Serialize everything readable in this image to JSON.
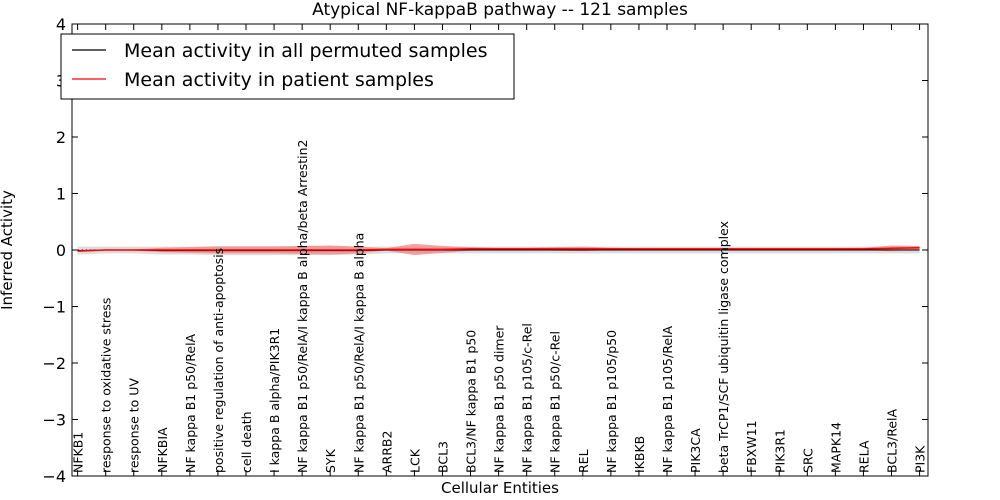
{
  "chart_data": {
    "type": "line",
    "title": "Atypical NF-kappaB pathway -- 121 samples",
    "xlabel": "Cellular Entities",
    "ylabel": "Inferred Activity",
    "ylim": [
      -4,
      4
    ],
    "xlim": [
      -0.2,
      30.3
    ],
    "yticks": [
      "−4",
      "−3",
      "−2",
      "−1",
      "0",
      "1",
      "2",
      "3",
      "4"
    ],
    "ytick_values": [
      -4,
      -3,
      -2,
      -1,
      0,
      1,
      2,
      3,
      4
    ],
    "grid": false,
    "legend_position": "top-left",
    "categories": [
      "NFKB1",
      "response to oxidative stress",
      "response to UV",
      "NFKBIA",
      "NF kappa B1 p50/RelA",
      "positive regulation of anti-apoptosis",
      "cell death",
      "I kappa B alpha/PIK3R1",
      "NF kappa B1 p50/RelA/I kappa B alpha/beta Arrestin2",
      "SYK",
      "NF kappa B1 p50/RelA/I kappa B alpha",
      "ARRB2",
      "LCK",
      "BCL3",
      "BCL3/NF kappa B1 p50",
      "NF kappa B1 p50 dimer",
      "NF kappa B1 p105/c-Rel",
      "NF kappa B1 p50/c-Rel",
      "REL",
      "NF kappa B1 p105/p50",
      "IKBKB",
      "NF kappa B1 p105/RelA",
      "PIK3CA",
      "beta TrCP1/SCF ubiquitin ligase complex",
      "FBXW11",
      "PIK3R1",
      "SRC",
      "MAPK14",
      "RELA",
      "BCL3/RelA",
      "PI3K"
    ],
    "series": [
      {
        "name": "Mean activity in all permuted samples",
        "color": "#000000",
        "values": [
          -0.01,
          0,
          0,
          -0.01,
          -0.01,
          -0.01,
          -0.01,
          -0.01,
          -0.01,
          -0.01,
          -0.01,
          0,
          0,
          0,
          0,
          0,
          0,
          0,
          0,
          0,
          0,
          0,
          0,
          0,
          0,
          0,
          0,
          0,
          0,
          0,
          0
        ],
        "band": [
          0.07,
          0.06,
          0.06,
          0.07,
          0.07,
          0.08,
          0.08,
          0.08,
          0.08,
          0.08,
          0.07,
          0.06,
          0.06,
          0.06,
          0.06,
          0.06,
          0.06,
          0.06,
          0.06,
          0.06,
          0.06,
          0.06,
          0.06,
          0.06,
          0.06,
          0.06,
          0.06,
          0.06,
          0.06,
          0.06,
          0.06
        ],
        "band_color": "#bbbbbb"
      },
      {
        "name": "Mean activity in patient samples",
        "color": "#ff0000",
        "values": [
          -0.02,
          0,
          0,
          0,
          0,
          0,
          0,
          0,
          0,
          0,
          0,
          0.01,
          0.01,
          0.01,
          0.02,
          0.02,
          0.02,
          0.02,
          0.02,
          0.02,
          0.02,
          0.02,
          0.02,
          0.02,
          0.02,
          0.02,
          0.02,
          0.02,
          0.02,
          0.03,
          0.04
        ],
        "band": [
          0.01,
          0.01,
          0.01,
          0.04,
          0.05,
          0.06,
          0.06,
          0.06,
          0.07,
          0.08,
          0.06,
          0.02,
          0.1,
          0.06,
          0.03,
          0.02,
          0.02,
          0.03,
          0.04,
          0.02,
          0.01,
          0.01,
          0.01,
          0.01,
          0.01,
          0.01,
          0.01,
          0.01,
          0.02,
          0.05,
          0.03
        ],
        "band_color": "#f08080"
      }
    ],
    "zero_line": 0
  }
}
